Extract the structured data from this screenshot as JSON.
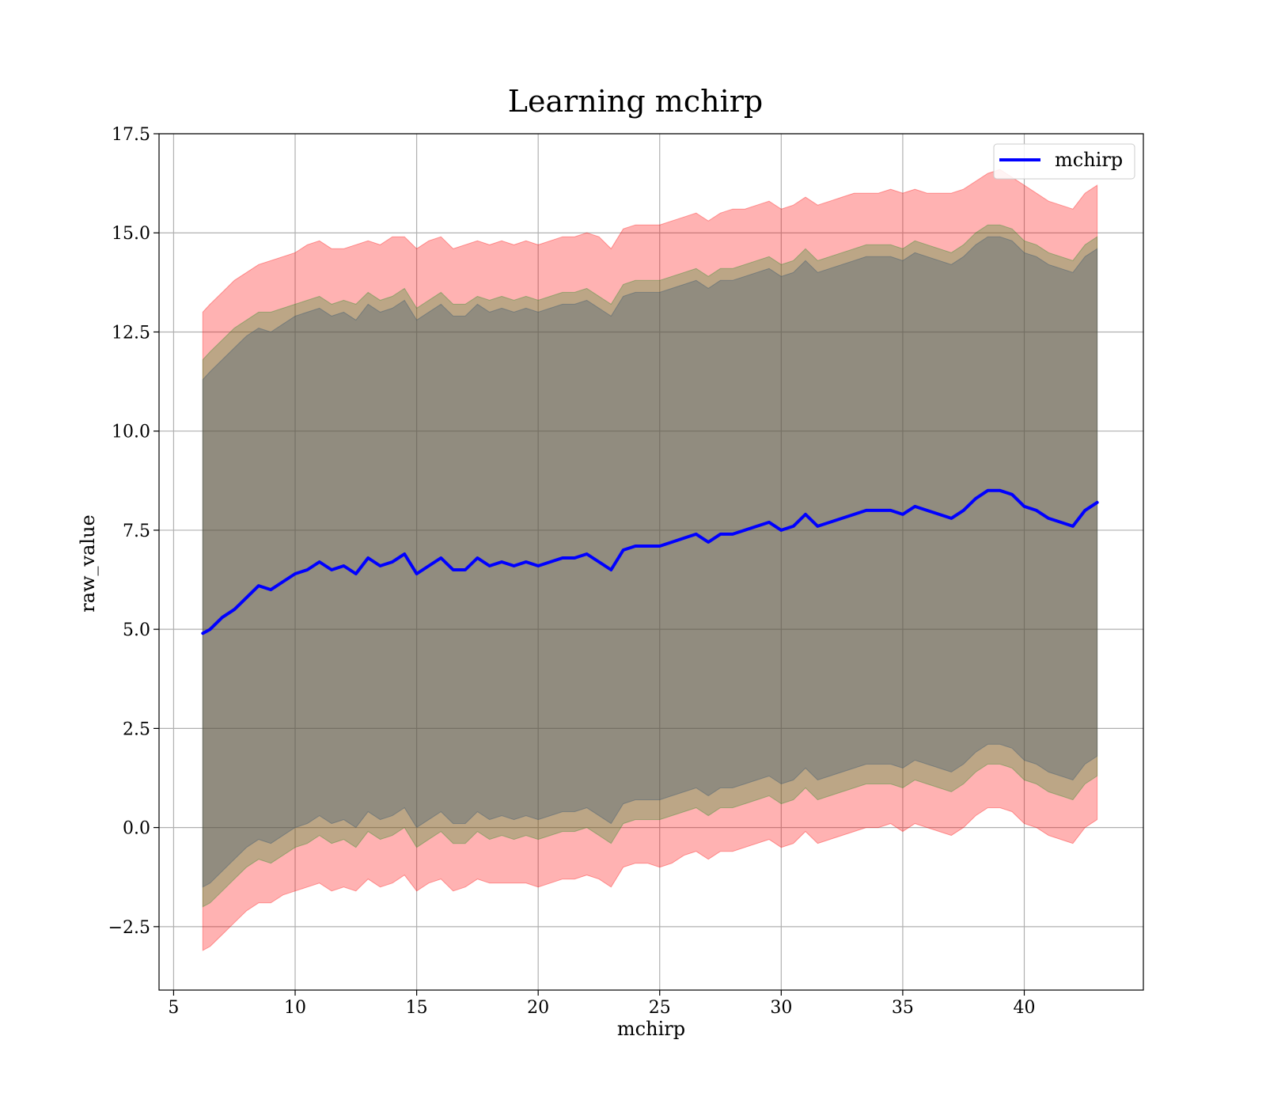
{
  "chart_data": {
    "type": "line",
    "title": "Learning mchirp",
    "xlabel": "mchirp",
    "ylabel": "raw_value",
    "xlim": [
      4.4,
      44.9
    ],
    "ylim": [
      -4.1,
      17.5
    ],
    "xticks": [
      5,
      10,
      15,
      20,
      25,
      30,
      35,
      40
    ],
    "xtick_labels": [
      "5",
      "10",
      "15",
      "20",
      "25",
      "30",
      "35",
      "40"
    ],
    "yticks": [
      -2.5,
      0.0,
      2.5,
      5.0,
      7.5,
      10.0,
      12.5,
      15.0,
      17.5
    ],
    "ytick_labels": [
      "−2.5",
      "0.0",
      "2.5",
      "5.0",
      "7.5",
      "10.0",
      "12.5",
      "15.0",
      "17.5"
    ],
    "grid": true,
    "legend_position": "top-right",
    "series": [
      {
        "name": "mchirp",
        "color": "#0000ff",
        "x": [
          6.2,
          6.5,
          7.0,
          7.5,
          8.0,
          8.5,
          9.0,
          9.5,
          10.0,
          10.5,
          11.0,
          11.5,
          12.0,
          12.5,
          13.0,
          13.5,
          14.0,
          14.5,
          15.0,
          15.5,
          16.0,
          16.5,
          17.0,
          17.5,
          18.0,
          18.5,
          19.0,
          19.5,
          20.0,
          20.5,
          21.0,
          21.5,
          22.0,
          22.5,
          23.0,
          23.5,
          24.0,
          24.5,
          25.0,
          25.5,
          26.0,
          26.5,
          27.0,
          27.5,
          28.0,
          28.5,
          29.0,
          29.5,
          30.0,
          30.5,
          31.0,
          31.5,
          32.0,
          32.5,
          33.0,
          33.5,
          34.0,
          34.5,
          35.0,
          35.5,
          36.0,
          36.5,
          37.0,
          37.5,
          38.0,
          38.5,
          39.0,
          39.5,
          40.0,
          40.5,
          41.0,
          41.5,
          42.0,
          42.5,
          43.0
        ],
        "y": [
          4.9,
          5.0,
          5.3,
          5.5,
          5.8,
          6.1,
          6.0,
          6.2,
          6.4,
          6.5,
          6.7,
          6.5,
          6.6,
          6.4,
          6.8,
          6.6,
          6.7,
          6.9,
          6.4,
          6.6,
          6.8,
          6.5,
          6.5,
          6.8,
          6.6,
          6.7,
          6.6,
          6.7,
          6.6,
          6.7,
          6.8,
          6.8,
          6.9,
          6.7,
          6.5,
          7.0,
          7.1,
          7.1,
          7.1,
          7.2,
          7.3,
          7.4,
          7.2,
          7.4,
          7.4,
          7.5,
          7.6,
          7.7,
          7.5,
          7.6,
          7.9,
          7.6,
          7.7,
          7.8,
          7.9,
          8.0,
          8.0,
          8.0,
          7.9,
          8.1,
          8.0,
          7.9,
          7.8,
          8.0,
          8.3,
          8.5,
          8.5,
          8.4,
          8.1,
          8.0,
          7.8,
          7.7,
          7.6,
          8.0,
          8.2
        ]
      }
    ],
    "bands": [
      {
        "color": "#ff0000",
        "upper": [
          13.0,
          13.2,
          13.5,
          13.8,
          14.0,
          14.2,
          14.3,
          14.4,
          14.5,
          14.7,
          14.8,
          14.6,
          14.6,
          14.7,
          14.8,
          14.7,
          14.9,
          14.9,
          14.6,
          14.8,
          14.9,
          14.6,
          14.7,
          14.8,
          14.7,
          14.8,
          14.7,
          14.8,
          14.7,
          14.8,
          14.9,
          14.9,
          15.0,
          14.9,
          14.6,
          15.1,
          15.2,
          15.2,
          15.2,
          15.3,
          15.4,
          15.5,
          15.3,
          15.5,
          15.6,
          15.6,
          15.7,
          15.8,
          15.6,
          15.7,
          15.9,
          15.7,
          15.8,
          15.9,
          16.0,
          16.0,
          16.0,
          16.1,
          16.0,
          16.1,
          16.0,
          16.0,
          16.0,
          16.1,
          16.3,
          16.5,
          16.6,
          16.4,
          16.2,
          16.0,
          15.8,
          15.7,
          15.6,
          16.0,
          16.2
        ],
        "lower": [
          -3.1,
          -3.0,
          -2.7,
          -2.4,
          -2.1,
          -1.9,
          -1.9,
          -1.7,
          -1.6,
          -1.5,
          -1.4,
          -1.6,
          -1.5,
          -1.6,
          -1.3,
          -1.5,
          -1.4,
          -1.2,
          -1.6,
          -1.4,
          -1.3,
          -1.6,
          -1.5,
          -1.3,
          -1.4,
          -1.4,
          -1.4,
          -1.4,
          -1.5,
          -1.4,
          -1.3,
          -1.3,
          -1.2,
          -1.3,
          -1.5,
          -1.0,
          -0.9,
          -0.9,
          -1.0,
          -0.9,
          -0.7,
          -0.6,
          -0.8,
          -0.6,
          -0.6,
          -0.5,
          -0.4,
          -0.3,
          -0.5,
          -0.4,
          -0.1,
          -0.4,
          -0.3,
          -0.2,
          -0.1,
          0.0,
          0.0,
          0.1,
          -0.1,
          0.1,
          0.0,
          -0.1,
          -0.2,
          0.0,
          0.3,
          0.5,
          0.5,
          0.4,
          0.1,
          0.0,
          -0.2,
          -0.3,
          -0.4,
          0.0,
          0.2
        ]
      },
      {
        "color": "#228b22",
        "upper": [
          11.8,
          12.0,
          12.3,
          12.6,
          12.8,
          13.0,
          13.0,
          13.1,
          13.2,
          13.3,
          13.4,
          13.2,
          13.3,
          13.2,
          13.5,
          13.3,
          13.4,
          13.6,
          13.1,
          13.3,
          13.5,
          13.2,
          13.2,
          13.4,
          13.3,
          13.4,
          13.3,
          13.4,
          13.3,
          13.4,
          13.5,
          13.5,
          13.6,
          13.4,
          13.2,
          13.7,
          13.8,
          13.8,
          13.8,
          13.9,
          14.0,
          14.1,
          13.9,
          14.1,
          14.1,
          14.2,
          14.3,
          14.4,
          14.2,
          14.3,
          14.6,
          14.3,
          14.4,
          14.5,
          14.6,
          14.7,
          14.7,
          14.7,
          14.6,
          14.8,
          14.7,
          14.6,
          14.5,
          14.7,
          15.0,
          15.2,
          15.2,
          15.1,
          14.8,
          14.7,
          14.5,
          14.4,
          14.3,
          14.7,
          14.9
        ],
        "lower": [
          -2.0,
          -1.9,
          -1.6,
          -1.3,
          -1.0,
          -0.8,
          -0.9,
          -0.7,
          -0.5,
          -0.4,
          -0.2,
          -0.4,
          -0.3,
          -0.5,
          -0.1,
          -0.3,
          -0.2,
          0.0,
          -0.5,
          -0.3,
          -0.1,
          -0.4,
          -0.4,
          -0.1,
          -0.3,
          -0.2,
          -0.3,
          -0.2,
          -0.3,
          -0.2,
          -0.1,
          -0.1,
          0.0,
          -0.2,
          -0.4,
          0.1,
          0.2,
          0.2,
          0.2,
          0.3,
          0.4,
          0.5,
          0.3,
          0.5,
          0.5,
          0.6,
          0.7,
          0.8,
          0.6,
          0.7,
          1.0,
          0.7,
          0.8,
          0.9,
          1.0,
          1.1,
          1.1,
          1.1,
          1.0,
          1.2,
          1.1,
          1.0,
          0.9,
          1.1,
          1.4,
          1.6,
          1.6,
          1.5,
          1.2,
          1.1,
          0.9,
          0.8,
          0.7,
          1.1,
          1.3
        ]
      },
      {
        "color": "#2f4f6f",
        "upper": [
          11.3,
          11.5,
          11.8,
          12.1,
          12.4,
          12.6,
          12.5,
          12.7,
          12.9,
          13.0,
          13.1,
          12.9,
          13.0,
          12.8,
          13.2,
          13.0,
          13.1,
          13.3,
          12.8,
          13.0,
          13.2,
          12.9,
          12.9,
          13.2,
          13.0,
          13.1,
          13.0,
          13.1,
          13.0,
          13.1,
          13.2,
          13.2,
          13.3,
          13.1,
          12.9,
          13.4,
          13.5,
          13.5,
          13.5,
          13.6,
          13.7,
          13.8,
          13.6,
          13.8,
          13.8,
          13.9,
          14.0,
          14.1,
          13.9,
          14.0,
          14.3,
          14.0,
          14.1,
          14.2,
          14.3,
          14.4,
          14.4,
          14.4,
          14.3,
          14.5,
          14.4,
          14.3,
          14.2,
          14.4,
          14.7,
          14.9,
          14.9,
          14.8,
          14.5,
          14.4,
          14.2,
          14.1,
          14.0,
          14.4,
          14.6
        ],
        "lower": [
          -1.5,
          -1.4,
          -1.1,
          -0.8,
          -0.5,
          -0.3,
          -0.4,
          -0.2,
          0.0,
          0.1,
          0.3,
          0.1,
          0.2,
          0.0,
          0.4,
          0.2,
          0.3,
          0.5,
          0.0,
          0.2,
          0.4,
          0.1,
          0.1,
          0.4,
          0.2,
          0.3,
          0.2,
          0.3,
          0.2,
          0.3,
          0.4,
          0.4,
          0.5,
          0.3,
          0.1,
          0.6,
          0.7,
          0.7,
          0.7,
          0.8,
          0.9,
          1.0,
          0.8,
          1.0,
          1.0,
          1.1,
          1.2,
          1.3,
          1.1,
          1.2,
          1.5,
          1.2,
          1.3,
          1.4,
          1.5,
          1.6,
          1.6,
          1.6,
          1.5,
          1.7,
          1.6,
          1.5,
          1.4,
          1.6,
          1.9,
          2.1,
          2.1,
          2.0,
          1.7,
          1.6,
          1.4,
          1.3,
          1.2,
          1.6,
          1.8
        ]
      }
    ]
  }
}
